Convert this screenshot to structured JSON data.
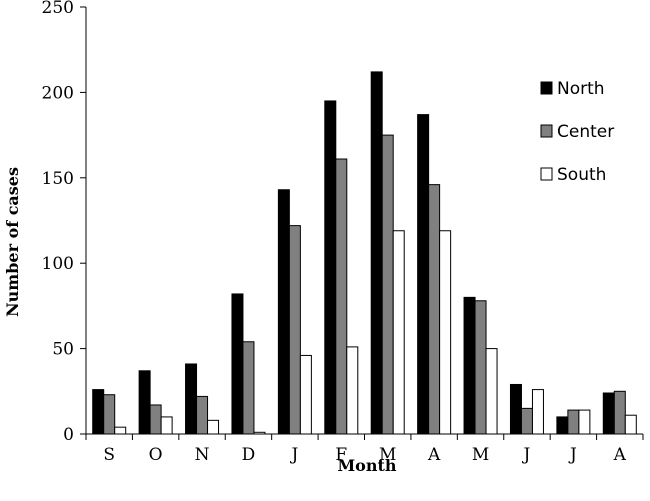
{
  "chart_data": {
    "type": "bar",
    "title": "",
    "xlabel": "Month",
    "ylabel": "Number of cases",
    "ylim": [
      0,
      250
    ],
    "yticks": [
      0,
      50,
      100,
      150,
      200,
      250
    ],
    "grid": false,
    "legend_position": "right",
    "categories": [
      "S",
      "O",
      "N",
      "D",
      "J",
      "F",
      "M",
      "A",
      "M",
      "J",
      "J",
      "A"
    ],
    "series": [
      {
        "name": "North",
        "color": "#000000",
        "values": [
          26,
          37,
          41,
          82,
          143,
          195,
          212,
          187,
          80,
          29,
          10,
          24
        ]
      },
      {
        "name": "Center",
        "color": "#808080",
        "values": [
          23,
          17,
          22,
          54,
          122,
          161,
          175,
          146,
          78,
          15,
          14,
          25
        ]
      },
      {
        "name": "South",
        "color": "#ffffff",
        "values": [
          4,
          10,
          8,
          1,
          46,
          51,
          119,
          119,
          50,
          26,
          14,
          11
        ]
      }
    ]
  }
}
